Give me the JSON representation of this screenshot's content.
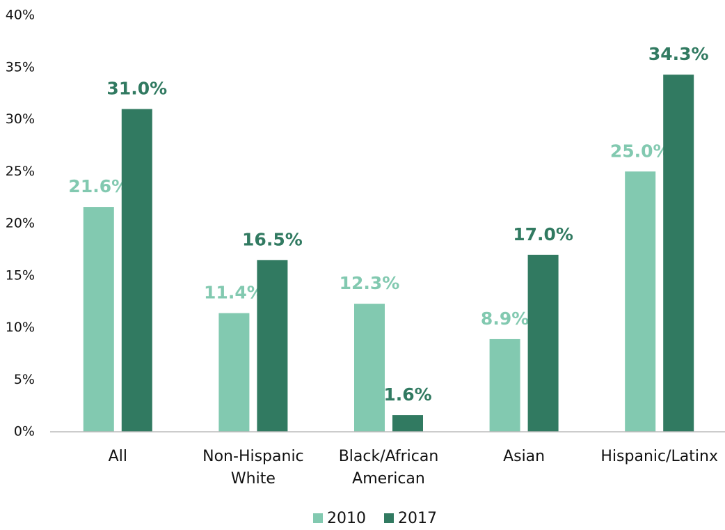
{
  "chart_data": {
    "type": "bar",
    "categories": [
      "All",
      "Non-Hispanic White",
      "Black/African American",
      "Asian",
      "Hispanic/Latinx"
    ],
    "series": [
      {
        "name": "2010",
        "color": "#82c9b0",
        "values": [
          21.6,
          11.4,
          12.3,
          8.9,
          25.0
        ],
        "value_labels": [
          "21.6%",
          "11.4%",
          "12.3%",
          "8.9%",
          "25.0%"
        ]
      },
      {
        "name": "2017",
        "color": "#317a61",
        "values": [
          31.0,
          16.5,
          1.6,
          17.0,
          34.3
        ],
        "value_labels": [
          "31.0%",
          "16.5%",
          "1.6%",
          "17.0%",
          "34.3%"
        ]
      }
    ],
    "ylim": [
      0,
      40
    ],
    "yticks": [
      {
        "value": 0,
        "label": "0%"
      },
      {
        "value": 5,
        "label": "5%"
      },
      {
        "value": 10,
        "label": "10%"
      },
      {
        "value": 15,
        "label": "15%"
      },
      {
        "value": 20,
        "label": "20%"
      },
      {
        "value": 25,
        "label": "25%"
      },
      {
        "value": 30,
        "label": "30%"
      },
      {
        "value": 35,
        "label": "35%"
      },
      {
        "value": 40,
        "label": "40%"
      }
    ],
    "legend": "bottom",
    "grid": false
  }
}
